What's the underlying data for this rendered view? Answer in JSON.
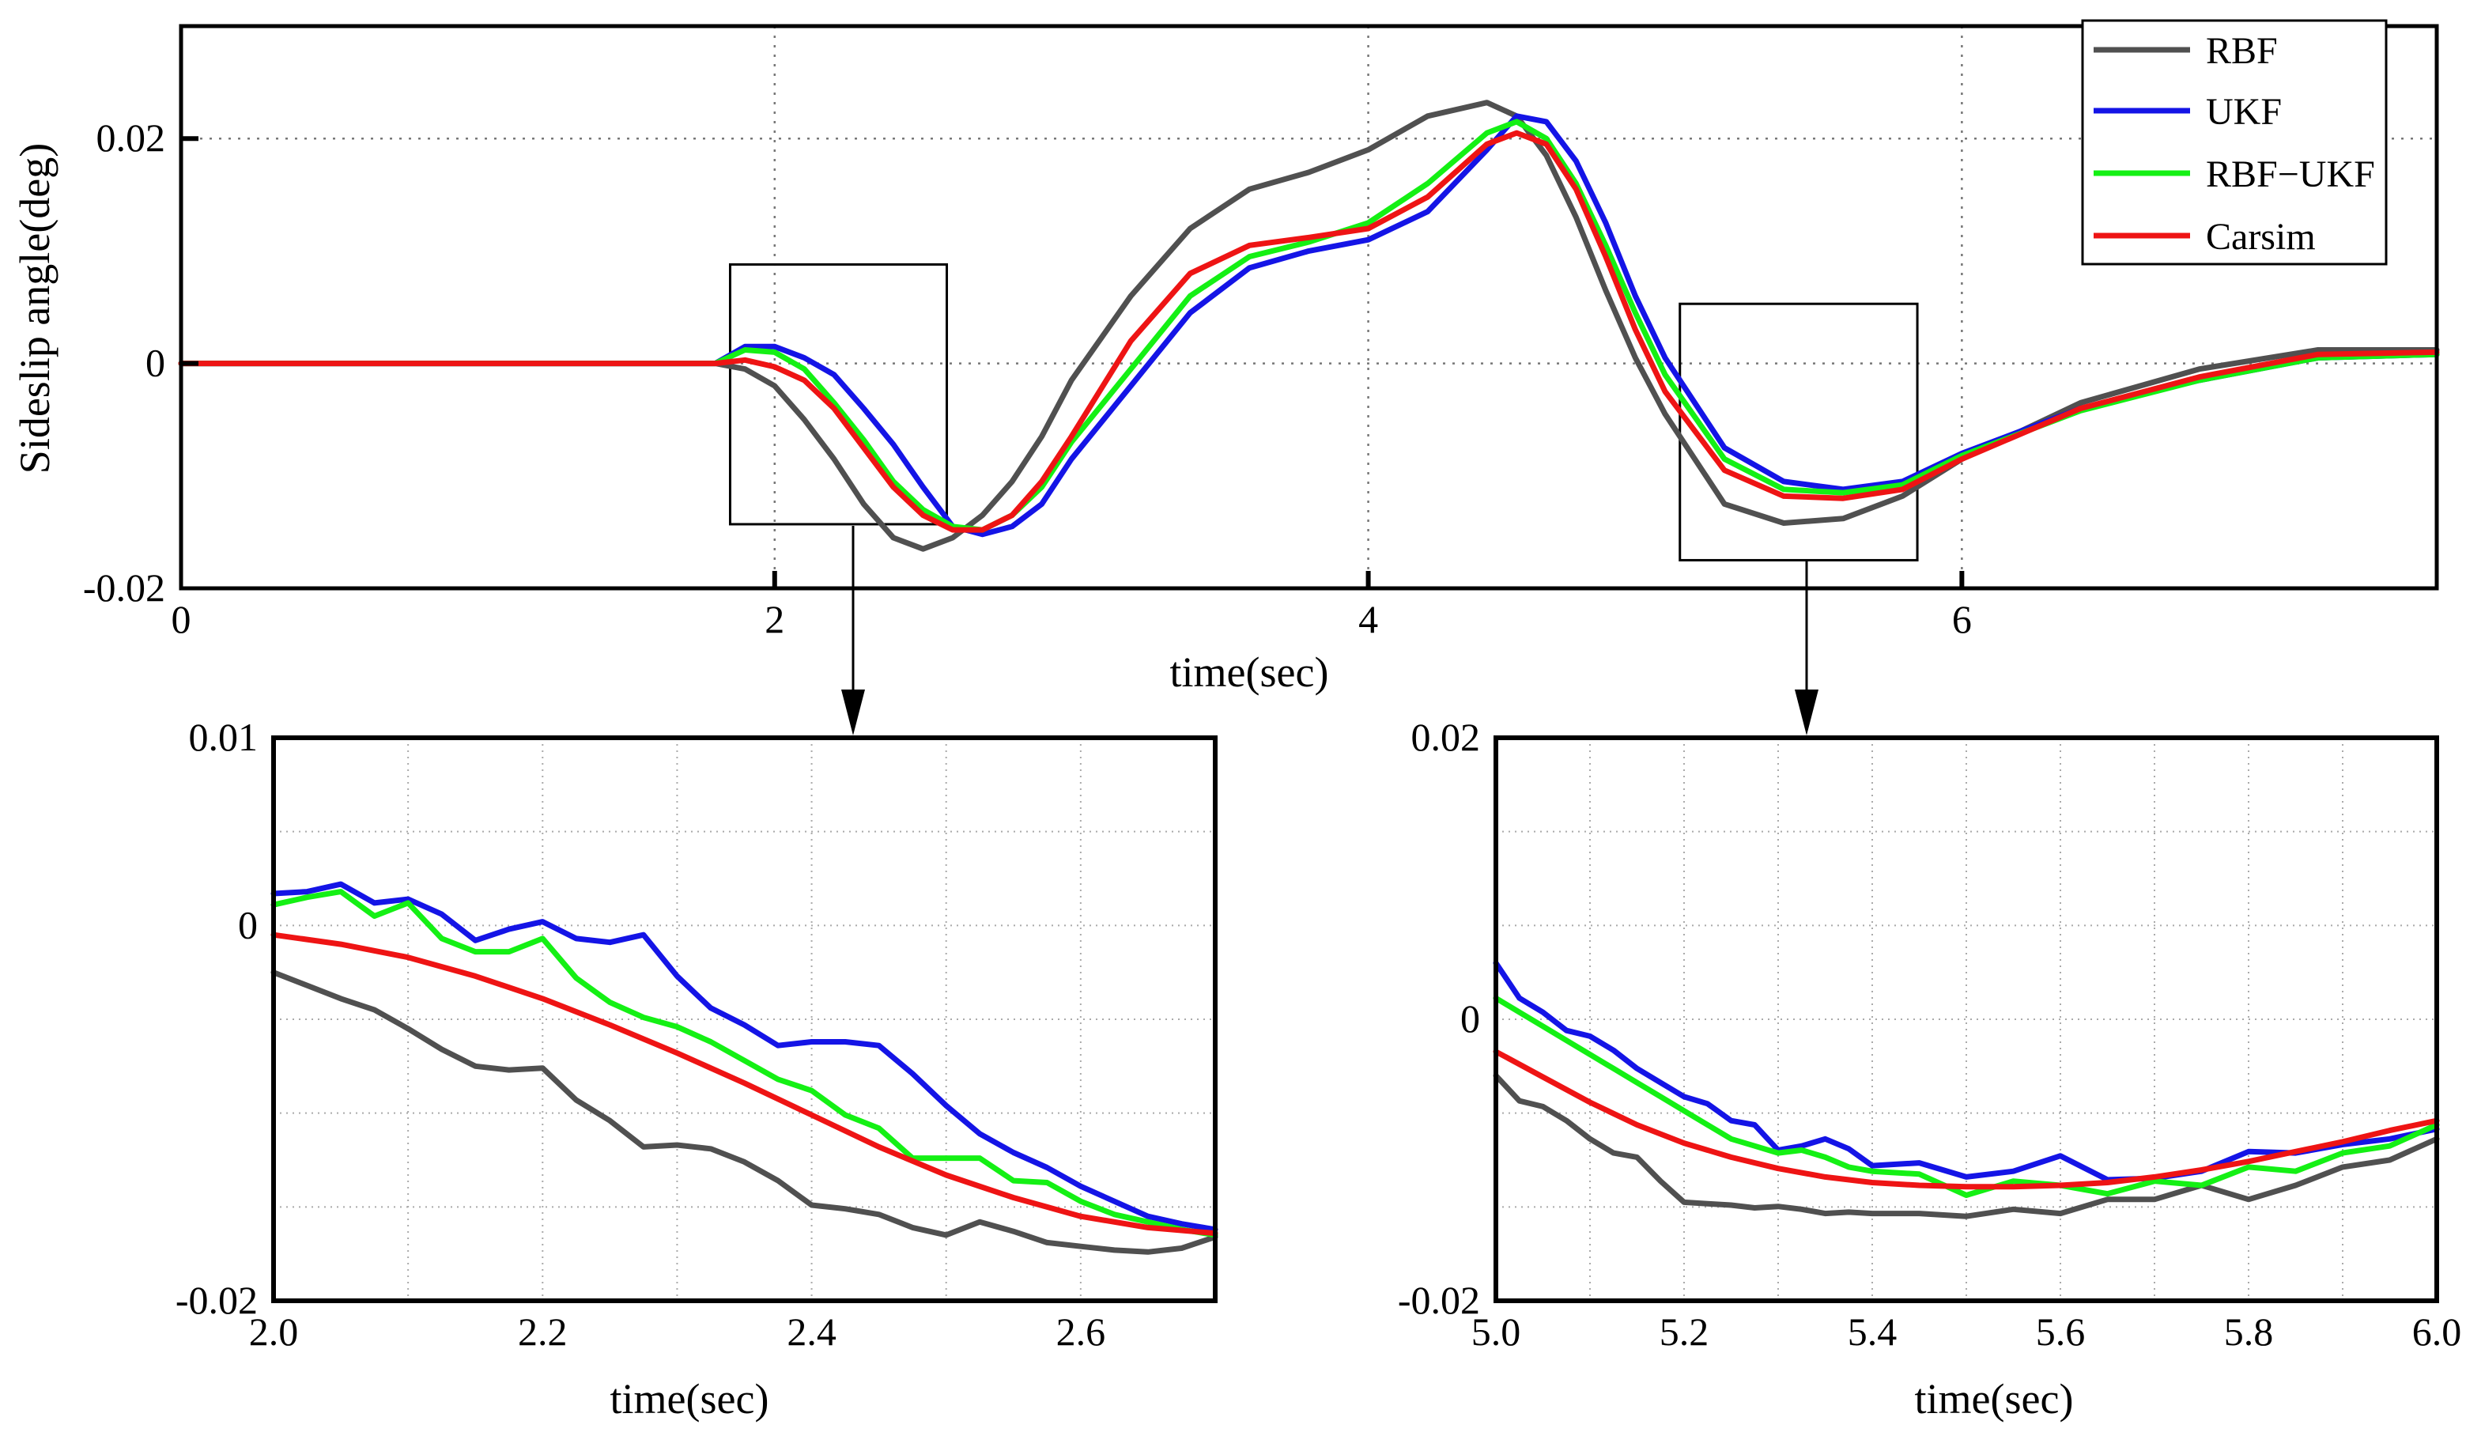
{
  "colors": {
    "RBF": "#505050",
    "UKF": "#1414e6",
    "RBF-UKF": "#14f014",
    "Carsim": "#ee1414"
  },
  "legend": [
    "RBF",
    "UKF",
    "RBF−UKF",
    "Carsim"
  ],
  "chart_data": [
    {
      "type": "line",
      "title": "",
      "xlabel": "time(sec)",
      "ylabel": "Sideslip angle(deg)",
      "xlim": [
        0,
        7.6
      ],
      "ylim": [
        -0.02,
        0.03
      ],
      "xticks": [
        0,
        2,
        4,
        6
      ],
      "xtick_labels": [
        "0",
        "2",
        "4",
        "6"
      ],
      "yticks": [
        -0.02,
        0,
        0.02
      ],
      "ytick_labels": [
        "-0.02",
        "0",
        "0.02"
      ],
      "grid": true,
      "legend_position": "top-right",
      "zoom_boxes": [
        {
          "x": [
            1.85,
            2.58
          ],
          "y": [
            -0.0143,
            0.0088
          ]
        },
        {
          "x": [
            5.05,
            5.85
          ],
          "y": [
            -0.0175,
            0.0053
          ]
        }
      ],
      "series": [
        {
          "name": "Carsim",
          "x": [
            0,
            1.8,
            1.9,
            2.0,
            2.1,
            2.2,
            2.3,
            2.4,
            2.5,
            2.6,
            2.7,
            2.8,
            2.9,
            3.0,
            3.2,
            3.4,
            3.6,
            3.8,
            4.0,
            4.2,
            4.4,
            4.5,
            4.6,
            4.7,
            4.8,
            4.9,
            5.0,
            5.2,
            5.4,
            5.6,
            5.8,
            6.0,
            6.4,
            6.8,
            7.2,
            7.6
          ],
          "y": [
            0,
            0,
            0.0003,
            -0.0003,
            -0.0015,
            -0.004,
            -0.0075,
            -0.011,
            -0.0135,
            -0.0148,
            -0.0148,
            -0.0135,
            -0.0105,
            -0.0065,
            0.002,
            0.008,
            0.0105,
            0.0112,
            0.012,
            0.0148,
            0.0195,
            0.0205,
            0.0195,
            0.0155,
            0.0095,
            0.003,
            -0.0025,
            -0.0095,
            -0.0118,
            -0.012,
            -0.0112,
            -0.0085,
            -0.004,
            -0.0012,
            0.0008,
            0.001
          ]
        },
        {
          "name": "UKF",
          "x": [
            0,
            1.8,
            1.9,
            2.0,
            2.1,
            2.2,
            2.3,
            2.4,
            2.5,
            2.6,
            2.7,
            2.8,
            2.9,
            3.0,
            3.2,
            3.4,
            3.6,
            3.8,
            4.0,
            4.2,
            4.4,
            4.5,
            4.6,
            4.7,
            4.8,
            4.9,
            5.0,
            5.2,
            5.4,
            5.6,
            5.8,
            6.0,
            6.4,
            6.8,
            7.2,
            7.6
          ],
          "y": [
            0,
            0,
            0.0015,
            0.0015,
            0.0005,
            -0.001,
            -0.004,
            -0.0072,
            -0.011,
            -0.0145,
            -0.0152,
            -0.0145,
            -0.0125,
            -0.0085,
            -0.002,
            0.0045,
            0.0085,
            0.01,
            0.011,
            0.0135,
            0.019,
            0.022,
            0.0215,
            0.018,
            0.0125,
            0.006,
            0.0005,
            -0.0075,
            -0.0105,
            -0.0112,
            -0.0105,
            -0.008,
            -0.004,
            -0.0015,
            0.0005,
            0.0008
          ]
        },
        {
          "name": "RBF-UKF",
          "x": [
            0,
            1.8,
            1.9,
            2.0,
            2.1,
            2.2,
            2.3,
            2.4,
            2.5,
            2.6,
            2.7,
            2.8,
            2.9,
            3.0,
            3.2,
            3.4,
            3.6,
            3.8,
            4.0,
            4.2,
            4.4,
            4.5,
            4.6,
            4.7,
            4.8,
            4.9,
            5.0,
            5.2,
            5.4,
            5.6,
            5.8,
            6.0,
            6.4,
            6.8,
            7.2,
            7.6
          ],
          "y": [
            0,
            0,
            0.0012,
            0.001,
            -0.0005,
            -0.0035,
            -0.0068,
            -0.0105,
            -0.013,
            -0.0145,
            -0.0148,
            -0.0135,
            -0.011,
            -0.007,
            -0.0005,
            0.006,
            0.0095,
            0.0108,
            0.0125,
            0.016,
            0.0205,
            0.0215,
            0.02,
            0.016,
            0.0105,
            0.0045,
            -0.001,
            -0.0085,
            -0.0112,
            -0.0115,
            -0.0108,
            -0.0082,
            -0.0042,
            -0.0015,
            0.0005,
            0.0008
          ]
        },
        {
          "name": "RBF",
          "x": [
            0,
            1.8,
            1.9,
            2.0,
            2.1,
            2.2,
            2.3,
            2.4,
            2.5,
            2.6,
            2.7,
            2.8,
            2.9,
            3.0,
            3.2,
            3.4,
            3.6,
            3.8,
            4.0,
            4.2,
            4.4,
            4.5,
            4.6,
            4.7,
            4.8,
            4.9,
            5.0,
            5.2,
            5.4,
            5.6,
            5.8,
            6.0,
            6.4,
            6.8,
            7.2,
            7.6
          ],
          "y": [
            0,
            0,
            -0.0005,
            -0.002,
            -0.005,
            -0.0085,
            -0.0125,
            -0.0155,
            -0.0165,
            -0.0155,
            -0.0135,
            -0.0105,
            -0.0065,
            -0.0015,
            0.006,
            0.012,
            0.0155,
            0.017,
            0.019,
            0.022,
            0.0232,
            0.022,
            0.0185,
            0.013,
            0.0065,
            0.0005,
            -0.0045,
            -0.0125,
            -0.0142,
            -0.0138,
            -0.0118,
            -0.0085,
            -0.0035,
            -0.0005,
            0.0012,
            0.0012
          ]
        }
      ]
    },
    {
      "type": "line",
      "title": "",
      "xlabel": "time(sec)",
      "ylabel": "",
      "xlim": [
        2.0,
        2.7
      ],
      "ylim": [
        -0.02,
        0.01
      ],
      "xticks": [
        2.0,
        2.2,
        2.4,
        2.6
      ],
      "xtick_labels": [
        "2.0",
        "2.2",
        "2.4",
        "2.6"
      ],
      "yticks": [
        -0.02,
        0,
        0.01
      ],
      "ytick_labels": [
        "-0.02",
        "0",
        "0.01"
      ],
      "grid": true,
      "series": [
        {
          "name": "Carsim",
          "x": [
            2.0,
            2.05,
            2.1,
            2.15,
            2.2,
            2.25,
            2.3,
            2.35,
            2.4,
            2.45,
            2.5,
            2.55,
            2.6,
            2.65,
            2.7
          ],
          "y": [
            -0.0005,
            -0.001,
            -0.0017,
            -0.0027,
            -0.0039,
            -0.0053,
            -0.0068,
            -0.0084,
            -0.0101,
            -0.0118,
            -0.0133,
            -0.0145,
            -0.0155,
            -0.0161,
            -0.0164
          ]
        },
        {
          "name": "UKF",
          "x": [
            2.0,
            2.025,
            2.05,
            2.075,
            2.1,
            2.125,
            2.15,
            2.175,
            2.2,
            2.225,
            2.25,
            2.275,
            2.3,
            2.325,
            2.35,
            2.375,
            2.4,
            2.425,
            2.45,
            2.475,
            2.5,
            2.525,
            2.55,
            2.575,
            2.6,
            2.625,
            2.65,
            2.675,
            2.7
          ],
          "y": [
            0.0017,
            0.0018,
            0.0022,
            0.0012,
            0.0014,
            0.0006,
            -0.0008,
            -0.0002,
            0.0002,
            -0.0007,
            -0.0009,
            -0.0005,
            -0.0027,
            -0.0044,
            -0.0053,
            -0.0064,
            -0.0062,
            -0.0062,
            -0.0064,
            -0.0079,
            -0.0096,
            -0.0111,
            -0.0121,
            -0.0129,
            -0.0139,
            -0.0147,
            -0.0155,
            -0.0159,
            -0.0162
          ]
        },
        {
          "name": "RBF-UKF",
          "x": [
            2.0,
            2.025,
            2.05,
            2.075,
            2.1,
            2.125,
            2.15,
            2.175,
            2.2,
            2.225,
            2.25,
            2.275,
            2.3,
            2.325,
            2.35,
            2.375,
            2.4,
            2.425,
            2.45,
            2.475,
            2.5,
            2.525,
            2.55,
            2.575,
            2.6,
            2.625,
            2.65,
            2.675,
            2.7
          ],
          "y": [
            0.0011,
            0.0015,
            0.0018,
            0.0005,
            0.0012,
            -0.0007,
            -0.0014,
            -0.0014,
            -0.0007,
            -0.0028,
            -0.0041,
            -0.0049,
            -0.0054,
            -0.0062,
            -0.0072,
            -0.0082,
            -0.0088,
            -0.0101,
            -0.0108,
            -0.0124,
            -0.0124,
            -0.0124,
            -0.0136,
            -0.0137,
            -0.0147,
            -0.0154,
            -0.0158,
            -0.0162,
            -0.0165
          ]
        },
        {
          "name": "RBF",
          "x": [
            2.0,
            2.025,
            2.05,
            2.075,
            2.1,
            2.125,
            2.15,
            2.175,
            2.2,
            2.225,
            2.25,
            2.275,
            2.3,
            2.325,
            2.35,
            2.375,
            2.4,
            2.425,
            2.45,
            2.475,
            2.5,
            2.525,
            2.55,
            2.575,
            2.6,
            2.625,
            2.65,
            2.675,
            2.7
          ],
          "y": [
            -0.0025,
            -0.0032,
            -0.0039,
            -0.0045,
            -0.0055,
            -0.0066,
            -0.0075,
            -0.0077,
            -0.0076,
            -0.0093,
            -0.0104,
            -0.0118,
            -0.0117,
            -0.0119,
            -0.0126,
            -0.0136,
            -0.0149,
            -0.0151,
            -0.0154,
            -0.0161,
            -0.0165,
            -0.0158,
            -0.0163,
            -0.0169,
            -0.0171,
            -0.0173,
            -0.0174,
            -0.0172,
            -0.0166
          ]
        }
      ]
    },
    {
      "type": "line",
      "title": "",
      "xlabel": "time(sec)",
      "ylabel": "",
      "xlim": [
        5.0,
        6.0
      ],
      "ylim": [
        -0.02,
        0.02
      ],
      "xticks": [
        5.0,
        5.2,
        5.4,
        5.6,
        5.8,
        6.0
      ],
      "xtick_labels": [
        "5.0",
        "5.2",
        "5.4",
        "5.6",
        "5.8",
        "6.0"
      ],
      "yticks": [
        -0.02,
        0,
        0.02
      ],
      "ytick_labels": [
        "-0.02",
        "0",
        "0.02"
      ],
      "grid": true,
      "series": [
        {
          "name": "Carsim",
          "x": [
            5.0,
            5.05,
            5.1,
            5.15,
            5.2,
            5.25,
            5.3,
            5.35,
            5.4,
            5.45,
            5.5,
            5.55,
            5.6,
            5.65,
            5.7,
            5.75,
            5.8,
            5.85,
            5.9,
            5.95,
            6.0
          ],
          "y": [
            -0.0023,
            -0.0041,
            -0.0059,
            -0.0075,
            -0.0088,
            -0.0098,
            -0.0106,
            -0.0112,
            -0.0116,
            -0.0118,
            -0.0119,
            -0.0119,
            -0.0118,
            -0.0116,
            -0.0112,
            -0.0107,
            -0.0101,
            -0.0094,
            -0.0087,
            -0.0079,
            -0.0072
          ]
        },
        {
          "name": "UKF",
          "x": [
            5.0,
            5.025,
            5.05,
            5.075,
            5.1,
            5.125,
            5.15,
            5.175,
            5.2,
            5.225,
            5.25,
            5.275,
            5.3,
            5.325,
            5.35,
            5.375,
            5.4,
            5.45,
            5.5,
            5.55,
            5.6,
            5.65,
            5.7,
            5.75,
            5.8,
            5.85,
            5.9,
            5.95,
            6.0
          ],
          "y": [
            0.004,
            0.0015,
            0.0005,
            -0.0008,
            -0.0012,
            -0.0022,
            -0.0035,
            -0.0045,
            -0.0055,
            -0.006,
            -0.0072,
            -0.0075,
            -0.0093,
            -0.009,
            -0.0085,
            -0.0092,
            -0.0104,
            -0.0102,
            -0.0112,
            -0.0108,
            -0.0097,
            -0.0114,
            -0.0113,
            -0.0108,
            -0.0094,
            -0.0095,
            -0.0089,
            -0.0085,
            -0.0078
          ]
        },
        {
          "name": "RBF-UKF",
          "x": [
            5.0,
            5.025,
            5.05,
            5.075,
            5.1,
            5.125,
            5.15,
            5.175,
            5.2,
            5.225,
            5.25,
            5.275,
            5.3,
            5.325,
            5.35,
            5.375,
            5.4,
            5.45,
            5.5,
            5.55,
            5.6,
            5.65,
            5.7,
            5.75,
            5.8,
            5.85,
            5.9,
            5.95,
            6.0
          ],
          "y": [
            0.0015,
            0.0005,
            -0.0005,
            -0.0015,
            -0.0025,
            -0.0035,
            -0.0045,
            -0.0055,
            -0.0065,
            -0.0075,
            -0.0085,
            -0.009,
            -0.0095,
            -0.0093,
            -0.0098,
            -0.0105,
            -0.0108,
            -0.011,
            -0.0125,
            -0.0115,
            -0.0118,
            -0.0124,
            -0.0115,
            -0.0118,
            -0.0105,
            -0.0108,
            -0.0095,
            -0.009,
            -0.0075
          ]
        },
        {
          "name": "RBF",
          "x": [
            5.0,
            5.025,
            5.05,
            5.075,
            5.1,
            5.125,
            5.15,
            5.175,
            5.2,
            5.225,
            5.25,
            5.275,
            5.3,
            5.325,
            5.35,
            5.375,
            5.4,
            5.45,
            5.5,
            5.55,
            5.6,
            5.65,
            5.7,
            5.75,
            5.8,
            5.85,
            5.9,
            5.95,
            6.0
          ],
          "y": [
            -0.004,
            -0.0058,
            -0.0062,
            -0.0072,
            -0.0085,
            -0.0095,
            -0.0098,
            -0.0115,
            -0.013,
            -0.0131,
            -0.0132,
            -0.0134,
            -0.0133,
            -0.0135,
            -0.0138,
            -0.0137,
            -0.0138,
            -0.0138,
            -0.014,
            -0.0135,
            -0.0138,
            -0.0128,
            -0.0128,
            -0.0118,
            -0.0128,
            -0.0118,
            -0.0105,
            -0.01,
            -0.0085
          ]
        }
      ]
    }
  ]
}
